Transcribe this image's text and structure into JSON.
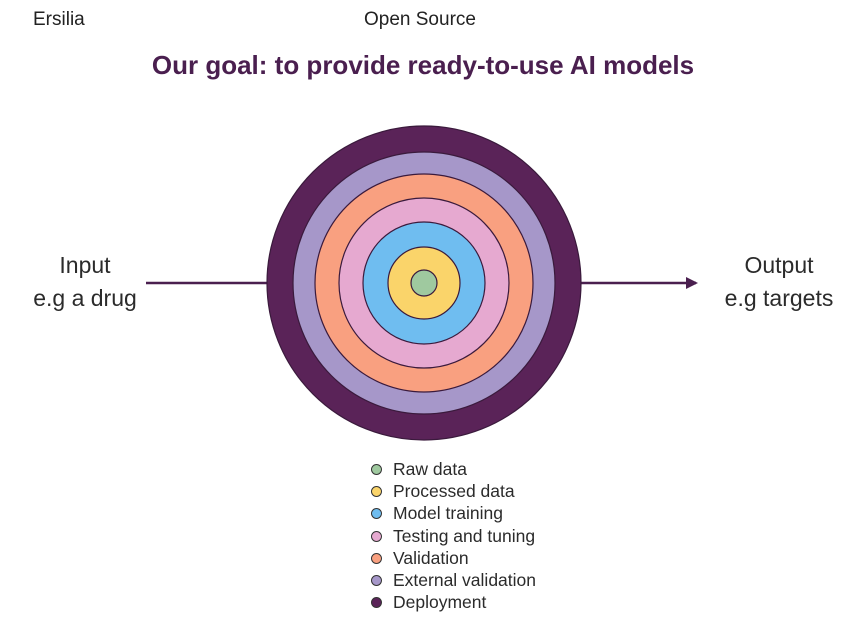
{
  "header": {
    "brand": "Ersilia",
    "section": "Open Source"
  },
  "title": "Our goal: to provide ready-to-use AI models",
  "input": {
    "line1": "Input",
    "line2": "e.g a drug"
  },
  "output": {
    "line1": "Output",
    "line2": "e.g targets"
  },
  "layers": [
    {
      "label": "Raw data",
      "color": "#9fc99f"
    },
    {
      "label": "Processed data",
      "color": "#fad46a"
    },
    {
      "label": "Model training",
      "color": "#6fbdf0"
    },
    {
      "label": "Testing and tuning",
      "color": "#e6a9d0"
    },
    {
      "label": "Validation",
      "color": "#f9a080"
    },
    {
      "label": "External validation",
      "color": "#a697c9"
    },
    {
      "label": "Deployment",
      "color": "#5a2358"
    }
  ],
  "colors": {
    "title": "#4a1f4f",
    "arrow": "#4a1f4f"
  }
}
